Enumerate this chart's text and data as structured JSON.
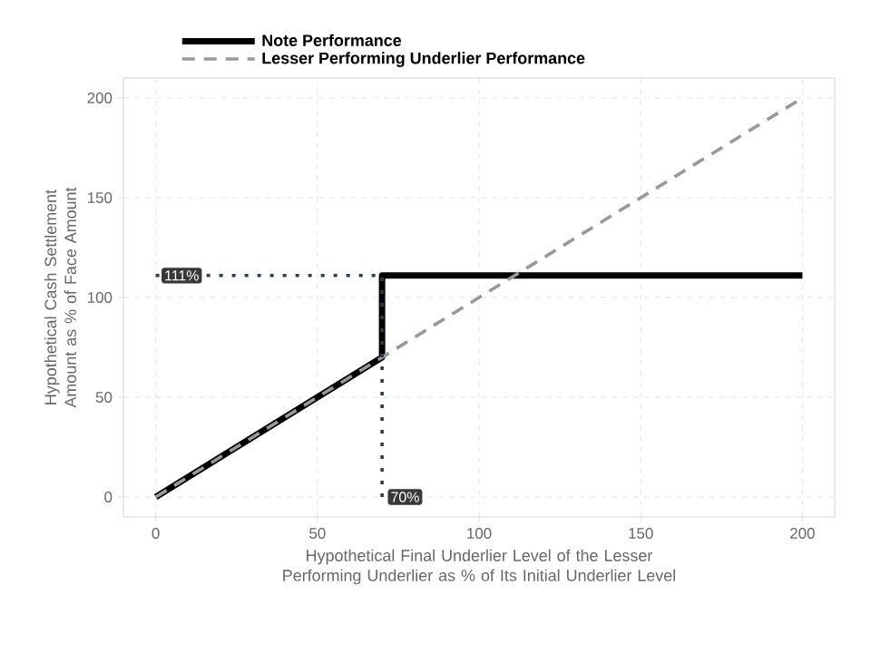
{
  "chart_data": {
    "type": "line",
    "xlabel": "Hypothetical Final Underlier Level of the Lesser Performing Underlier as % of Its Initial Underlier Level",
    "ylabel": "Hypothetical Cash Settlement Amount as % of Face Amount",
    "xlim": [
      -10,
      210
    ],
    "ylim": [
      -10,
      210
    ],
    "xticks": [
      0,
      50,
      100,
      150,
      200
    ],
    "yticks": [
      0,
      50,
      100,
      150,
      200
    ],
    "grid": true,
    "legend": "top",
    "series": [
      {
        "name": "Note Performance",
        "color": "#000000",
        "line_style": "solid",
        "x": [
          0,
          70,
          70,
          200
        ],
        "values": [
          0,
          70,
          111,
          111
        ]
      },
      {
        "name": "Lesser Performing Underlier Performance",
        "color": "#999999",
        "line_style": "dashed",
        "x": [
          0,
          200
        ],
        "values": [
          0,
          200
        ]
      },
      {
        "color": "#2c3e50",
        "line_style": "dotted",
        "x": [
          0,
          70
        ],
        "values": [
          111,
          111
        ]
      },
      {
        "color": "#2c3e50",
        "line_style": "dotted",
        "x": [
          70,
          70
        ],
        "values": [
          0,
          111
        ]
      }
    ],
    "annotations": [
      {
        "text": "111%",
        "x": 0,
        "y": 111
      },
      {
        "text": "70%",
        "x": 70,
        "y": 0
      }
    ]
  }
}
